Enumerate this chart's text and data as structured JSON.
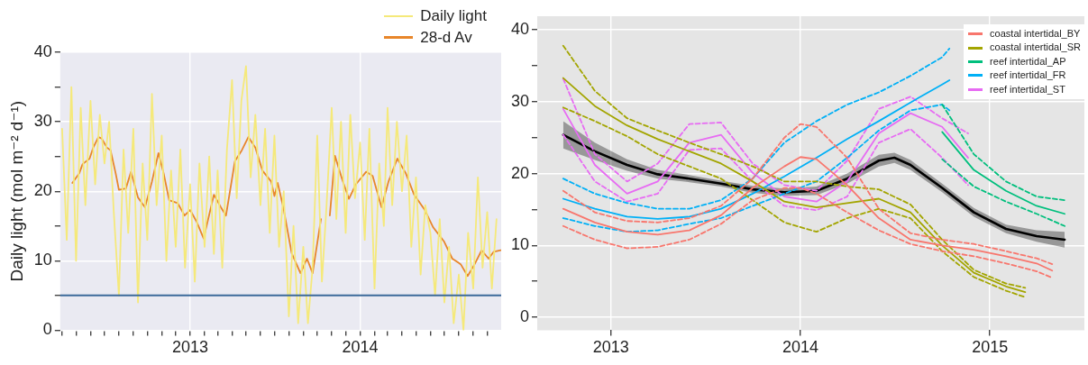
{
  "chart_data": [
    {
      "type": "line",
      "ylabel": "Daily light (mol m⁻² d⁻¹)",
      "xlim": [
        "2012-03-28",
        "2014-10-31"
      ],
      "xticks": [
        {
          "value": "2012-04",
          "label": null
        },
        {
          "value": "2012-05",
          "label": null
        },
        {
          "value": "2012-06",
          "label": null
        },
        {
          "value": "2012-07",
          "label": null
        },
        {
          "value": "2012-08",
          "label": null
        },
        {
          "value": "2012-09",
          "label": null
        },
        {
          "value": "2012-10",
          "label": null
        },
        {
          "value": "2012-11",
          "label": null
        },
        {
          "value": "2012-12",
          "label": null
        },
        "2013",
        {
          "value": "2013-02",
          "label": null
        },
        {
          "value": "2013-03",
          "label": null
        },
        {
          "value": "2013-04",
          "label": null
        },
        {
          "value": "2013-05",
          "label": null
        },
        {
          "value": "2013-06",
          "label": null
        },
        {
          "value": "2013-07",
          "label": null
        },
        {
          "value": "2013-08",
          "label": null
        },
        {
          "value": "2013-09",
          "label": null
        },
        {
          "value": "2013-10",
          "label": null
        },
        {
          "value": "2013-11",
          "label": null
        },
        {
          "value": "2013-12",
          "label": null
        },
        "2014",
        {
          "value": "2014-02",
          "label": null
        },
        {
          "value": "2014-03",
          "label": null
        },
        {
          "value": "2014-04",
          "label": null
        },
        {
          "value": "2014-05",
          "label": null
        },
        {
          "value": "2014-06",
          "label": null
        },
        {
          "value": "2014-07",
          "label": null
        },
        {
          "value": "2014-08",
          "label": null
        },
        {
          "value": "2014-09",
          "label": null
        },
        {
          "value": "2014-10",
          "label": null
        }
      ],
      "ylim": [
        0,
        40
      ],
      "yticks": [
        0,
        {
          "value": 5,
          "label": null
        },
        10,
        {
          "value": 15,
          "label": null
        },
        20,
        {
          "value": 25,
          "label": null
        },
        30,
        {
          "value": 35,
          "label": null
        },
        40
      ],
      "grid": true,
      "legend": "top right",
      "ref_lines": [
        {
          "axis": "y",
          "value": 5,
          "color": "#3b6a9a"
        }
      ],
      "series": [
        {
          "name": "Daily light",
          "color": "#f5e97a",
          "x": [
            "2012-04-01",
            "2012-04-11",
            "2012-04-21",
            "2012-05-01",
            "2012-05-11",
            "2012-05-21",
            "2012-06-01",
            "2012-06-11",
            "2012-06-21",
            "2012-07-01",
            "2012-07-11",
            "2012-07-21",
            "2012-08-01",
            "2012-08-11",
            "2012-08-21",
            "2012-09-01",
            "2012-09-11",
            "2012-09-21",
            "2012-10-01",
            "2012-10-11",
            "2012-10-21",
            "2012-11-01",
            "2012-11-11",
            "2012-11-21",
            "2012-12-01",
            "2012-12-11",
            "2012-12-21",
            "2013-01-01",
            "2013-01-11",
            "2013-01-21",
            "2013-02-01",
            "2013-02-11",
            "2013-02-21",
            "2013-03-01",
            "2013-03-11",
            "2013-03-21",
            "2013-04-01",
            "2013-04-11",
            "2013-04-21",
            "2013-05-01",
            "2013-05-11",
            "2013-05-21",
            "2013-06-01",
            "2013-06-11",
            "2013-06-21",
            "2013-07-01",
            "2013-07-11",
            "2013-07-21",
            "2013-08-01",
            "2013-08-11",
            "2013-08-21",
            "2013-09-01",
            "2013-09-11",
            "2013-09-21",
            "2013-10-01",
            "2013-10-11",
            "2013-10-21",
            "2013-11-01",
            "2013-11-11",
            "2013-11-21",
            "2013-12-01",
            "2013-12-11",
            "2013-12-21",
            "2014-01-01",
            "2014-01-11",
            "2014-01-21",
            "2014-02-01",
            "2014-02-11",
            "2014-02-21",
            "2014-03-01",
            "2014-03-11",
            "2014-03-21",
            "2014-04-01",
            "2014-04-11",
            "2014-04-21",
            "2014-05-01",
            "2014-05-11",
            "2014-05-21",
            "2014-06-01",
            "2014-06-11",
            "2014-06-21",
            "2014-07-01",
            "2014-07-11",
            "2014-07-21",
            "2014-08-01",
            "2014-08-11",
            "2014-08-21",
            "2014-09-01",
            "2014-09-11",
            "2014-09-21",
            "2014-10-01",
            "2014-10-11",
            "2014-10-21"
          ],
          "values": [
            29,
            13,
            35,
            10,
            32,
            18,
            33,
            21,
            31,
            24,
            30,
            17,
            5,
            26,
            14,
            29,
            4,
            24,
            13,
            34,
            18,
            28,
            10,
            23,
            12,
            26,
            9,
            21,
            7,
            24,
            12,
            25,
            11,
            23,
            9,
            26,
            36,
            19,
            33,
            38,
            22,
            31,
            18,
            29,
            14,
            28,
            12,
            20,
            2,
            15,
            1,
            12,
            1,
            9,
            28,
            7,
            18,
            32,
            16,
            30,
            14,
            31,
            19,
            27,
            13,
            29,
            6,
            24,
            15,
            32,
            18,
            30,
            20,
            28,
            12,
            22,
            8,
            18,
            14,
            5,
            16,
            4,
            12,
            1,
            8,
            0,
            14,
            6,
            22,
            9,
            17,
            6,
            16
          ]
        },
        {
          "name": "28-d Av",
          "color": "#e8862a",
          "x": [
            "2012-04-23",
            "2012-05-08",
            "2012-05-15",
            "2012-05-30",
            "2012-06-07",
            "2012-06-18",
            "2012-06-25",
            "2012-07-06",
            "2012-07-14",
            "2012-07-25",
            "2012-08-01",
            "2012-08-16",
            "2012-08-27",
            "2012-09-11",
            "2012-09-26",
            "2012-10-11",
            "2012-10-25",
            "2012-11-05",
            "2012-11-17",
            "2012-12-05",
            "2012-12-20",
            "2013-01-01",
            "2013-01-15",
            "2013-01-30",
            "2013-02-21",
            "2013-03-08",
            "2013-03-19",
            "2013-04-07",
            "2013-04-22",
            "2013-05-06",
            "2013-05-21",
            "2013-06-05",
            "2013-06-24",
            "2013-07-01",
            "2013-07-08",
            "2013-07-20",
            "2013-08-07",
            "2013-08-26",
            "2013-09-09",
            "2013-09-21",
            "2013-10-09",
            "2013-10-18",
            "2013-10-28",
            "2013-11-08",
            "2013-11-23",
            "2013-12-08",
            "2013-12-23",
            "2014-01-14",
            "2014-01-28",
            "2014-02-16",
            "2014-03-03",
            "2014-03-22",
            "2014-04-09",
            "2014-04-27",
            "2014-05-20",
            "2014-06-07",
            "2014-06-30",
            "2014-07-18",
            "2014-08-05",
            "2014-08-20",
            "2014-09-04",
            "2014-09-19",
            "2014-10-04",
            "2014-10-15",
            "2014-10-30"
          ],
          "values": [
            21.2,
            22.6,
            23.9,
            24.7,
            26.3,
            27.8,
            27.6,
            26.3,
            25.9,
            22.6,
            20.2,
            20.4,
            22.8,
            19.1,
            17.7,
            21.4,
            25.5,
            22.6,
            18.7,
            18.3,
            16.5,
            17.3,
            15.6,
            13.2,
            19.5,
            17.7,
            16.5,
            24.3,
            25.9,
            27.8,
            26.3,
            23.0,
            21.4,
            19.3,
            21.2,
            17.7,
            11.1,
            8.2,
            10.3,
            8.2,
            16.0,
            null,
            16.5,
            25.1,
            21.8,
            18.9,
            21.0,
            22.8,
            22.2,
            17.7,
            21.4,
            24.7,
            22.6,
            19.5,
            17.3,
            14.8,
            12.8,
            10.3,
            9.5,
            7.8,
            9.5,
            11.5,
            10.3,
            11.3,
            11.5
          ]
        }
      ]
    },
    {
      "type": "line",
      "xlim": [
        "2012-08-12",
        "2015-07-02"
      ],
      "xticks": [
        "2013",
        "2014",
        "2015"
      ],
      "ylim": [
        -1.8,
        41.9
      ],
      "yticks": [
        0,
        {
          "value": 5,
          "label": null
        },
        10,
        {
          "value": 15,
          "label": null
        },
        20,
        {
          "value": 25,
          "label": null
        },
        30,
        {
          "value": 35,
          "label": null
        },
        40
      ],
      "grid": true,
      "legend": "top right",
      "series": [
        {
          "name": "coastal intertidal_BY",
          "color": "#f8766d",
          "x": [
            "2012-10",
            "2012-12",
            "2013-02",
            "2013-04",
            "2013-06",
            "2013-08",
            "2013-10",
            "2013-12",
            "2014-01",
            "2014-02",
            "2014-04",
            "2014-06",
            "2014-08",
            "2014-10",
            "2014-12",
            "2015-02",
            "2015-04",
            "2015-05"
          ],
          "values": [
            15.1,
            13.2,
            11.9,
            11.5,
            12.1,
            14.2,
            18.0,
            21.0,
            22.3,
            22.0,
            18.4,
            13.8,
            10.8,
            10.0,
            9.4,
            8.5,
            7.5,
            6.5
          ]
        },
        {
          "color": "#f8766d",
          "line_style": "dashed",
          "x": [
            "2012-10",
            "2012-12",
            "2013-02",
            "2013-04",
            "2013-06",
            "2013-08",
            "2013-10",
            "2013-12",
            "2014-01",
            "2014-02",
            "2014-04",
            "2014-06",
            "2014-08",
            "2014-10",
            "2014-12",
            "2015-02",
            "2015-04",
            "2015-05"
          ],
          "values": [
            17.6,
            14.6,
            13.4,
            13.2,
            13.8,
            15.5,
            19.3,
            25.0,
            26.9,
            26.5,
            22.2,
            15.1,
            11.7,
            10.8,
            10.2,
            9.2,
            8.2,
            7.4
          ]
        },
        {
          "color": "#f8766d",
          "line_style": "dashed",
          "x": [
            "2012-10",
            "2012-12",
            "2013-02",
            "2013-04",
            "2013-06",
            "2013-08",
            "2013-10",
            "2013-12",
            "2014-01",
            "2014-02",
            "2014-04",
            "2014-06",
            "2014-08",
            "2014-10",
            "2014-12",
            "2015-02",
            "2015-04",
            "2015-05"
          ],
          "values": [
            12.7,
            10.8,
            9.6,
            9.8,
            10.8,
            13.0,
            16.3,
            18.0,
            18.0,
            17.2,
            14.6,
            12.1,
            10.2,
            9.2,
            8.5,
            7.5,
            6.4,
            5.5
          ]
        },
        {
          "name": "coastal intertidal_SR",
          "color": "#a3a500",
          "x": [
            "2012-10",
            "2012-12",
            "2013-02",
            "2013-04",
            "2013-06",
            "2013-08",
            "2013-10",
            "2013-12",
            "2014-02",
            "2014-04",
            "2014-06",
            "2014-08",
            "2014-10",
            "2014-12",
            "2015-02",
            "2015-03-10"
          ],
          "values": [
            33.3,
            29.4,
            26.7,
            24.8,
            23.1,
            21.4,
            18.9,
            16.1,
            15.3,
            15.9,
            16.5,
            14.6,
            10.0,
            6.2,
            4.3,
            3.5
          ]
        },
        {
          "color": "#a3a500",
          "line_style": "dashed",
          "x": [
            "2012-10",
            "2012-12",
            "2013-02",
            "2013-04",
            "2013-06",
            "2013-08",
            "2013-10",
            "2013-12",
            "2014-02",
            "2014-04",
            "2014-06",
            "2014-08",
            "2014-10",
            "2014-12",
            "2015-02",
            "2015-03-10"
          ],
          "values": [
            37.8,
            31.5,
            27.7,
            26.0,
            24.3,
            22.7,
            21.0,
            18.9,
            18.9,
            18.2,
            17.8,
            15.7,
            10.8,
            6.6,
            4.7,
            4.1
          ]
        },
        {
          "color": "#a3a500",
          "line_style": "dashed",
          "x": [
            "2012-10",
            "2012-12",
            "2013-02",
            "2013-04",
            "2013-06",
            "2013-08",
            "2013-10",
            "2013-12",
            "2014-02",
            "2014-04",
            "2014-06",
            "2014-08",
            "2014-10",
            "2014-12",
            "2015-02",
            "2015-03-10"
          ],
          "values": [
            29.2,
            27.3,
            25.2,
            22.7,
            21.0,
            19.3,
            16.3,
            13.2,
            11.9,
            13.8,
            15.1,
            13.8,
            9.2,
            5.6,
            3.7,
            2.8
          ]
        },
        {
          "name": "reef intertidal_AP",
          "color": "#00bf7d",
          "x": [
            "2014-10",
            "2014-12",
            "2015-02",
            "2015-04",
            "2015-05-25"
          ],
          "values": [
            25.8,
            20.5,
            17.6,
            15.5,
            14.4
          ]
        },
        {
          "color": "#00bf7d",
          "line_style": "dashed",
          "x": [
            "2014-10",
            "2014-12",
            "2015-02",
            "2015-04",
            "2015-05-25"
          ],
          "values": [
            29.6,
            22.7,
            18.9,
            16.8,
            16.3
          ]
        },
        {
          "color": "#00bf7d",
          "line_style": "dashed",
          "x": [
            "2014-10",
            "2014-12",
            "2015-02",
            "2015-04",
            "2015-05-25"
          ],
          "values": [
            22.0,
            18.2,
            16.1,
            14.4,
            12.7
          ]
        },
        {
          "name": "reef intertidal_FR",
          "color": "#00b0f6",
          "x": [
            "2012-10",
            "2012-12",
            "2013-02",
            "2013-04",
            "2013-06",
            "2013-08",
            "2013-10",
            "2013-12",
            "2014-02",
            "2014-04",
            "2014-06",
            "2014-08",
            "2014-10",
            "2014-10-15"
          ],
          "values": [
            16.5,
            15.1,
            14.0,
            13.7,
            14.0,
            15.1,
            17.2,
            19.6,
            22.2,
            24.8,
            27.3,
            29.9,
            32.4,
            33.0
          ]
        },
        {
          "color": "#00b0f6",
          "line_style": "dashed",
          "x": [
            "2012-10",
            "2012-12",
            "2013-02",
            "2013-04",
            "2013-06",
            "2013-08",
            "2013-10",
            "2013-12",
            "2014-02",
            "2014-04",
            "2014-06",
            "2014-08",
            "2014-10",
            "2014-10-15"
          ],
          "values": [
            19.3,
            17.2,
            15.9,
            15.1,
            15.1,
            16.3,
            19.3,
            24.3,
            27.3,
            29.6,
            31.3,
            33.6,
            36.2,
            37.4
          ]
        },
        {
          "color": "#00b0f6",
          "line_style": "dashed",
          "x": [
            "2012-10",
            "2012-12",
            "2013-02",
            "2013-04",
            "2013-06",
            "2013-08",
            "2013-10",
            "2013-12",
            "2014-02",
            "2014-04",
            "2014-06",
            "2014-08",
            "2014-10",
            "2014-10-15"
          ],
          "values": [
            13.8,
            12.7,
            11.9,
            12.1,
            13.0,
            13.8,
            15.5,
            17.2,
            18.9,
            22.2,
            26.0,
            28.8,
            29.6,
            28.8
          ]
        },
        {
          "name": "reef intertidal_ST",
          "color": "#e76bf3",
          "x": [
            "2012-10",
            "2012-12",
            "2013-02",
            "2013-04",
            "2013-06",
            "2013-08",
            "2013-10",
            "2013-12",
            "2014-02",
            "2014-04",
            "2014-06",
            "2014-08",
            "2014-10",
            "2014-11-20"
          ],
          "values": [
            29.0,
            21.2,
            17.2,
            18.9,
            24.3,
            25.4,
            20.1,
            16.8,
            16.1,
            18.9,
            25.6,
            28.4,
            26.5,
            22.2
          ]
        },
        {
          "color": "#e76bf3",
          "line_style": "dashed",
          "x": [
            "2012-10",
            "2012-12",
            "2013-02",
            "2013-04",
            "2013-06",
            "2013-08",
            "2013-10",
            "2013-12",
            "2014-02",
            "2014-04",
            "2014-06",
            "2014-08",
            "2014-10",
            "2014-11-20"
          ],
          "values": [
            33.2,
            22.7,
            18.9,
            21.4,
            26.9,
            27.1,
            21.4,
            18.4,
            17.6,
            21.8,
            29.0,
            30.7,
            27.7,
            25.6
          ]
        },
        {
          "color": "#e76bf3",
          "line_style": "dashed",
          "x": [
            "2012-10",
            "2012-12",
            "2013-02",
            "2013-04",
            "2013-06",
            "2013-08",
            "2013-10",
            "2013-12",
            "2014-02",
            "2014-04",
            "2014-06",
            "2014-08",
            "2014-10",
            "2014-11-20"
          ],
          "values": [
            25.4,
            18.9,
            16.1,
            17.2,
            23.3,
            23.5,
            18.9,
            15.5,
            14.9,
            16.8,
            24.3,
            26.2,
            22.2,
            18.4
          ]
        },
        {
          "color": "#000000",
          "x": [
            "2012-10",
            "2012-12",
            "2013-02",
            "2013-04",
            "2013-06",
            "2013-08",
            "2013-10",
            "2013-12",
            "2014-02",
            "2014-04",
            "2014-06",
            "2014-07",
            "2014-08",
            "2014-10",
            "2014-12",
            "2015-02",
            "2015-04",
            "2015-05-25"
          ],
          "values": [
            25.4,
            23.1,
            21.2,
            19.9,
            19.3,
            18.6,
            17.8,
            17.4,
            17.6,
            19.3,
            21.8,
            22.2,
            21.2,
            18.0,
            14.6,
            12.3,
            11.3,
            10.8
          ],
          "lower": [
            23.5,
            21.9,
            20.4,
            19.3,
            18.8,
            18.2,
            17.3,
            16.9,
            17.0,
            18.6,
            21.0,
            21.5,
            20.5,
            17.4,
            14.0,
            11.7,
            10.5,
            9.7
          ],
          "upper": [
            27.3,
            24.3,
            22.0,
            20.5,
            19.8,
            19.0,
            18.3,
            17.9,
            18.2,
            20.0,
            22.6,
            22.9,
            21.9,
            18.6,
            15.2,
            12.9,
            12.1,
            11.9
          ]
        }
      ]
    }
  ]
}
